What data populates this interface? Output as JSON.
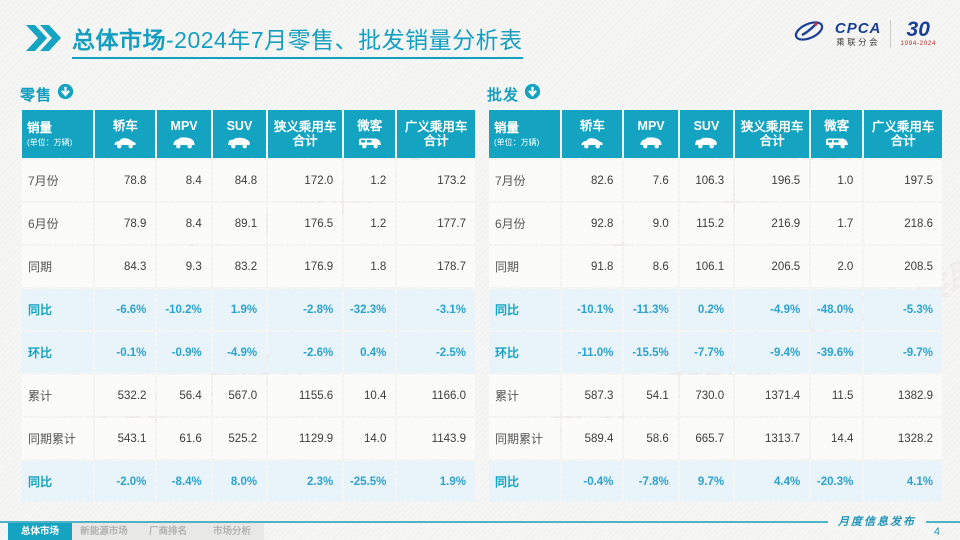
{
  "page_title": {
    "bold": "总体市场",
    "rest": "-2024年7月零售、批发销量分析表"
  },
  "logo": {
    "cpca_name": "CPCA",
    "cpca_sub": "乘联分会",
    "anniversary": "30",
    "anniversary_years": "1994-2024"
  },
  "watermark": "CPCA 乘联分会",
  "columns": [
    {
      "label": "销量",
      "unit": "(单位：万辆)"
    },
    {
      "label": "轿车",
      "icon": "sedan"
    },
    {
      "label": "MPV",
      "icon": "mpv"
    },
    {
      "label": "SUV",
      "icon": "suv"
    },
    {
      "label": "狭义乘用车",
      "label2": "合计"
    },
    {
      "label": "微客",
      "icon": "van"
    },
    {
      "label": "广义乘用车",
      "label2": "合计"
    }
  ],
  "chart_data": [
    {
      "type": "table",
      "title": "零售",
      "unit": "万辆",
      "columns": [
        "轿车",
        "MPV",
        "SUV",
        "狭义乘用车合计",
        "微客",
        "广义乘用车合计"
      ],
      "rows": [
        {
          "label": "7月份",
          "percent": false,
          "values": [
            "78.8",
            "8.4",
            "84.8",
            "172.0",
            "1.2",
            "173.2"
          ]
        },
        {
          "label": "6月份",
          "percent": false,
          "values": [
            "78.9",
            "8.4",
            "89.1",
            "176.5",
            "1.2",
            "177.7"
          ]
        },
        {
          "label": "同期",
          "percent": false,
          "values": [
            "84.3",
            "9.3",
            "83.2",
            "176.9",
            "1.8",
            "178.7"
          ]
        },
        {
          "label": "同比",
          "percent": true,
          "values": [
            "-6.6%",
            "-10.2%",
            "1.9%",
            "-2.8%",
            "-32.3%",
            "-3.1%"
          ]
        },
        {
          "label": "环比",
          "percent": true,
          "values": [
            "-0.1%",
            "-0.9%",
            "-4.9%",
            "-2.6%",
            "0.4%",
            "-2.5%"
          ]
        },
        {
          "label": "累计",
          "percent": false,
          "values": [
            "532.2",
            "56.4",
            "567.0",
            "1155.6",
            "10.4",
            "1166.0"
          ]
        },
        {
          "label": "同期累计",
          "percent": false,
          "values": [
            "543.1",
            "61.6",
            "525.2",
            "1129.9",
            "14.0",
            "1143.9"
          ]
        },
        {
          "label": "同比",
          "percent": true,
          "values": [
            "-2.0%",
            "-8.4%",
            "8.0%",
            "2.3%",
            "-25.5%",
            "1.9%"
          ]
        }
      ]
    },
    {
      "type": "table",
      "title": "批发",
      "unit": "万辆",
      "columns": [
        "轿车",
        "MPV",
        "SUV",
        "狭义乘用车合计",
        "微客",
        "广义乘用车合计"
      ],
      "rows": [
        {
          "label": "7月份",
          "percent": false,
          "values": [
            "82.6",
            "7.6",
            "106.3",
            "196.5",
            "1.0",
            "197.5"
          ]
        },
        {
          "label": "6月份",
          "percent": false,
          "values": [
            "92.8",
            "9.0",
            "115.2",
            "216.9",
            "1.7",
            "218.6"
          ]
        },
        {
          "label": "同期",
          "percent": false,
          "values": [
            "91.8",
            "8.6",
            "106.1",
            "206.5",
            "2.0",
            "208.5"
          ]
        },
        {
          "label": "同比",
          "percent": true,
          "values": [
            "-10.1%",
            "-11.3%",
            "0.2%",
            "-4.9%",
            "-48.0%",
            "-5.3%"
          ]
        },
        {
          "label": "环比",
          "percent": true,
          "values": [
            "-11.0%",
            "-15.5%",
            "-7.7%",
            "-9.4%",
            "-39.6%",
            "-9.7%"
          ]
        },
        {
          "label": "累计",
          "percent": false,
          "values": [
            "587.3",
            "54.1",
            "730.0",
            "1371.4",
            "11.5",
            "1382.9"
          ]
        },
        {
          "label": "同期累计",
          "percent": false,
          "values": [
            "589.4",
            "58.6",
            "665.7",
            "1313.7",
            "14.4",
            "1328.2"
          ]
        },
        {
          "label": "同比",
          "percent": true,
          "values": [
            "-0.4%",
            "-7.8%",
            "9.7%",
            "4.4%",
            "-20.3%",
            "4.1%"
          ]
        }
      ]
    }
  ],
  "footer": {
    "tabs": [
      {
        "label": "总体市场",
        "active": true
      },
      {
        "label": "新能源市场",
        "active": false
      },
      {
        "label": "厂商排名",
        "active": false
      },
      {
        "label": "市场分析",
        "active": false
      }
    ],
    "publication": "月度信息发布",
    "page_number": "4"
  },
  "colors": {
    "accent_teal": "#14a4c1",
    "percent_blue": "#2da2cf",
    "percent_row_bg": "#e8f4f9",
    "logo_blue": "#1c3f94",
    "anniversary_red": "#c03030"
  }
}
